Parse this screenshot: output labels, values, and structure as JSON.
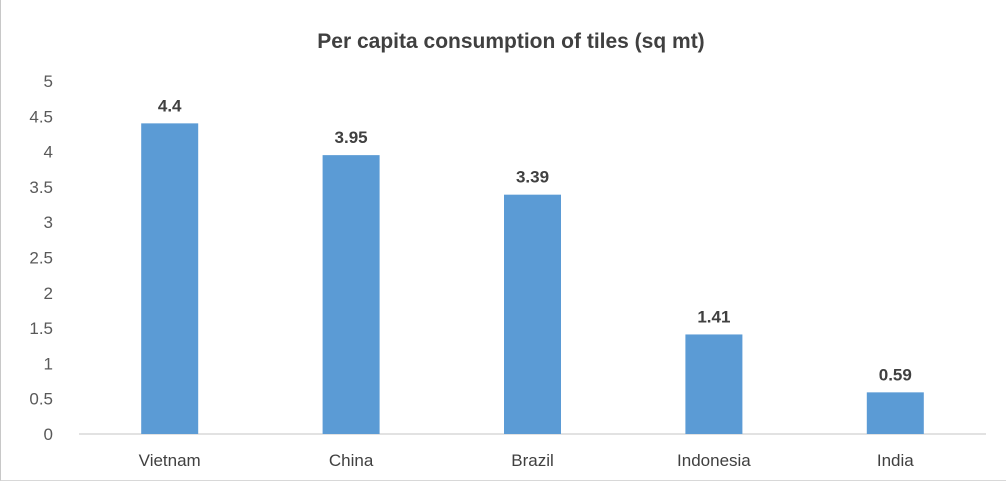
{
  "chart_data": {
    "type": "bar",
    "title": "Per capita consumption of tiles (sq mt)",
    "xlabel": "",
    "ylabel": "",
    "categories": [
      "Vietnam",
      "China",
      "Brazil",
      "Indonesia",
      "India"
    ],
    "values": [
      4.4,
      3.95,
      3.39,
      1.41,
      0.59
    ],
    "data_labels": [
      "4.4",
      "3.95",
      "3.39",
      "1.41",
      "0.59"
    ],
    "y_ticks": [
      "0",
      "0.5",
      "1",
      "1.5",
      "2",
      "2.5",
      "3",
      "3.5",
      "4",
      "4.5",
      "5"
    ],
    "ylim": [
      0,
      5
    ],
    "grid": false,
    "legend": "none",
    "bar_color": "#5B9BD5",
    "axis_color": "#d9d9d9"
  }
}
